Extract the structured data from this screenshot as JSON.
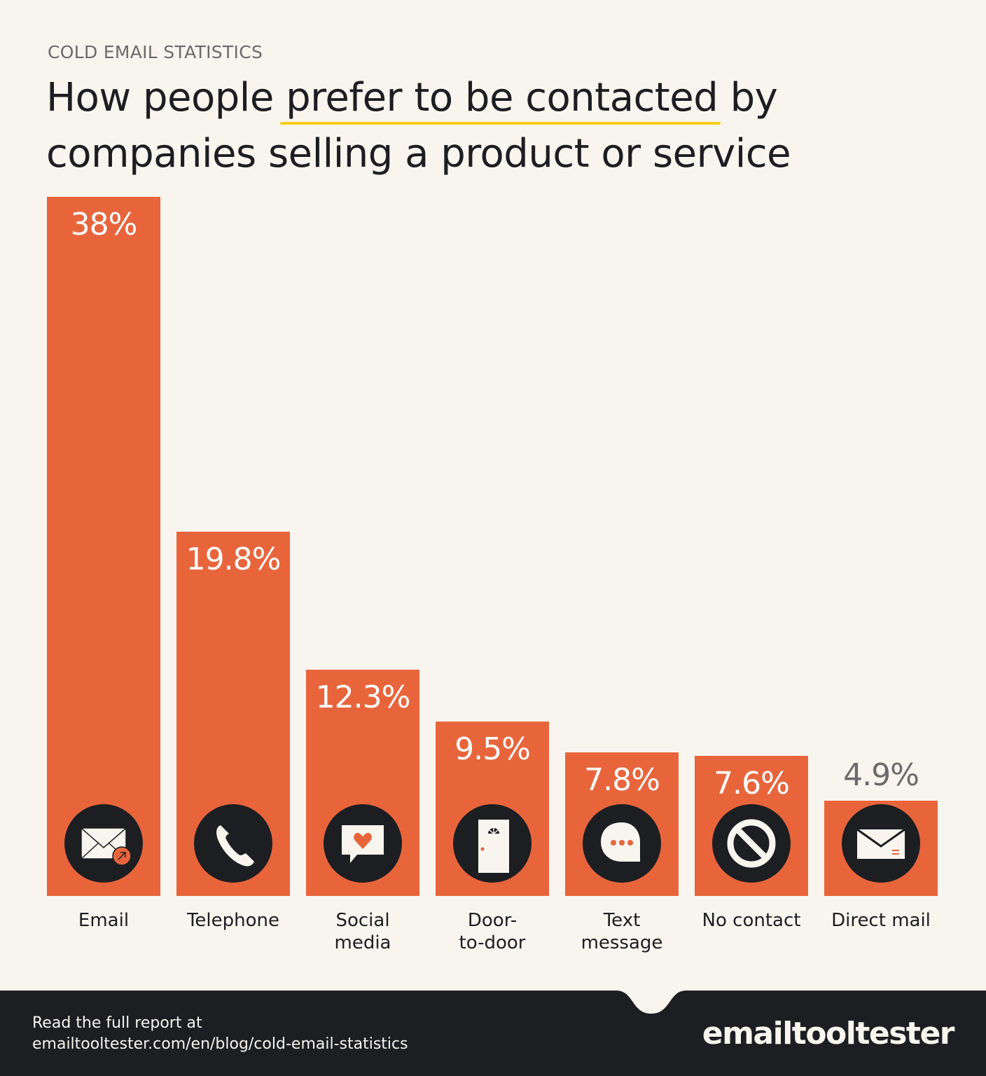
{
  "header": {
    "kicker": "COLD EMAIL STATISTICS",
    "title_before": "How people ",
    "title_highlight": "prefer to be contacted",
    "title_after": " by companies selling a product or service"
  },
  "chart_data": {
    "type": "bar",
    "categories": [
      "Email",
      "Telephone",
      "Social\nmedia",
      "Door-\nto-door",
      "Text\nmessage",
      "No contact",
      "Direct mail"
    ],
    "values": [
      38,
      19.8,
      12.3,
      9.5,
      7.8,
      7.6,
      4.9
    ],
    "value_labels": [
      "38%",
      "19.8%",
      "12.3%",
      "9.5%",
      "7.8%",
      "7.6%",
      "4.9%"
    ],
    "icons": [
      "email-send-icon",
      "phone-icon",
      "chat-heart-icon",
      "door-icon",
      "text-message-icon",
      "no-contact-icon",
      "envelope-icon"
    ],
    "title": "",
    "xlabel": "",
    "ylabel": "",
    "ylim": [
      0,
      38
    ],
    "grid": false,
    "colors": {
      "bar": "#e8653c",
      "icon_bg": "#1c1e22",
      "highlight": "#f7cd1e"
    }
  },
  "footer": {
    "line1": "Read the full report at",
    "line2": "emailtooltester.com/en/blog/cold-email-statistics",
    "logo": "emailtooltester"
  }
}
